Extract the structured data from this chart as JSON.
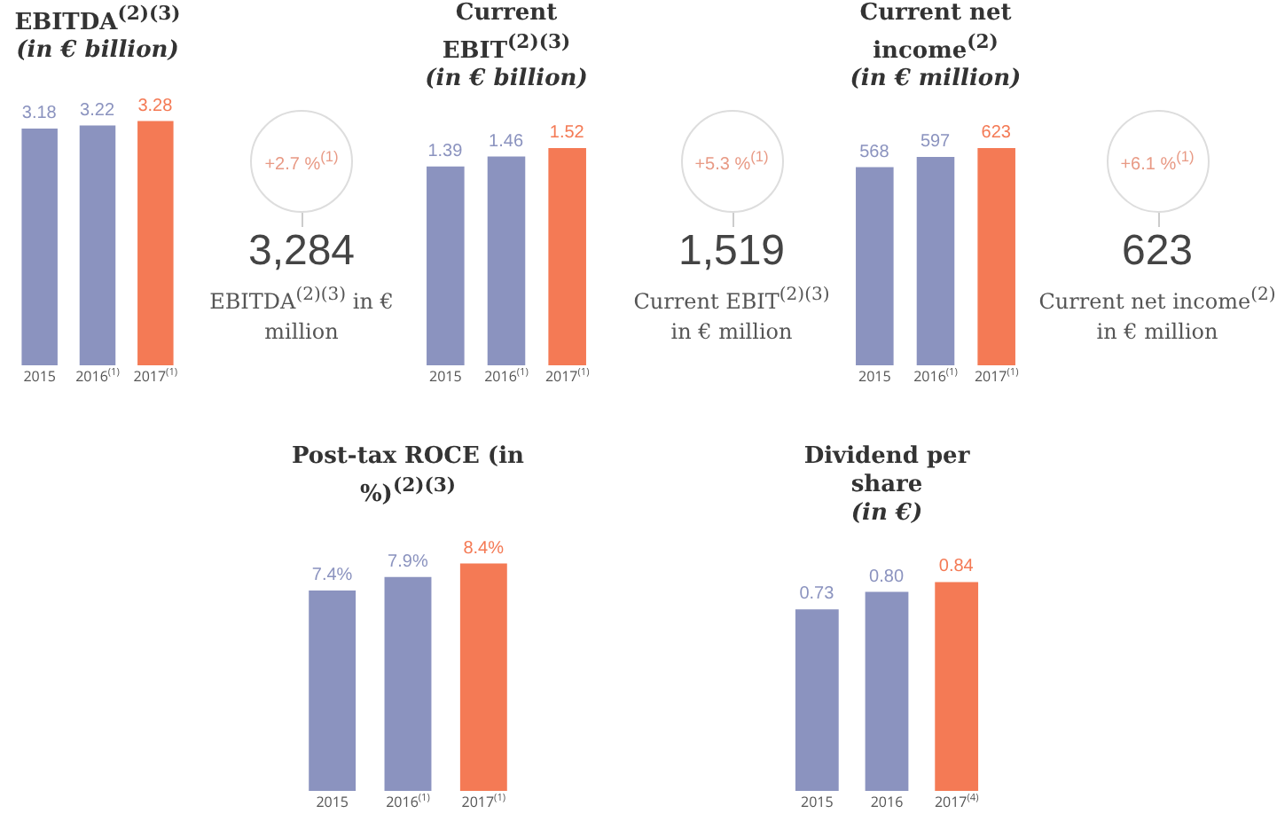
{
  "chart_data": [
    {
      "type": "bar",
      "title": "EBITDA$^{(2)(3)}$",
      "subtitle": "(in € billion)",
      "categories": [
        "2015",
        "2016$^{(1)}$",
        "2017$^{(1)}$"
      ],
      "values": [
        3.18,
        3.22,
        3.28
      ],
      "colors": [
        "#8b93bf",
        "#8b93bf",
        "#f47a55"
      ],
      "data_labels": true
    },
    {
      "type": "other",
      "annotations": [
        "+2.7 %$^{(1)}$",
        "3,284",
        "EBITDA$^{(2)(3)}$ in € million"
      ]
    },
    {
      "type": "bar",
      "title": "Current EBIT$^{(2)(3)}$",
      "subtitle": "(in € billion)",
      "categories": [
        "2015",
        "2016$^{(1)}$",
        "2017$^{(1)}$"
      ],
      "values": [
        1.39,
        1.46,
        1.52
      ],
      "colors": [
        "#8b93bf",
        "#8b93bf",
        "#f47a55"
      ],
      "data_labels": true
    },
    {
      "type": "other",
      "annotations": [
        "+5.3 %$^{(1)}$",
        "1,519",
        "Current EBIT$^{(2)(3)}$ in € million"
      ]
    },
    {
      "type": "bar",
      "title": "Current net income$^{(2)}$",
      "subtitle": "(in € million)",
      "categories": [
        "2015",
        "2016$^{(1)}$",
        "2017$^{(1)}$"
      ],
      "values": [
        568,
        597,
        623
      ],
      "colors": [
        "#8b93bf",
        "#8b93bf",
        "#f47a55"
      ],
      "data_labels": true
    },
    {
      "type": "other",
      "annotations": [
        "+6.1 %$^{(1)}$",
        "623",
        "Current net income$^{(2)}$ in € million"
      ]
    },
    {
      "type": "bar",
      "title": "Post-tax ROCE (in %)$^{(2)(3)}$",
      "categories": [
        "2015",
        "2016$^{(1)}$",
        "2017$^{(1)}$"
      ],
      "values": [
        7.4,
        7.9,
        8.4
      ],
      "value_labels": [
        "7.4%",
        "7.9%",
        "8.4%"
      ],
      "colors": [
        "#8b93bf",
        "#8b93bf",
        "#f47a55"
      ]
    },
    {
      "type": "bar",
      "title": "Dividend per share",
      "subtitle": "(in €)",
      "categories": [
        "2015",
        "2016",
        "2017$^{(4)}$"
      ],
      "values": [
        0.73,
        0.8,
        0.84
      ],
      "value_labels": [
        "0.73",
        "0.80",
        "0.84"
      ],
      "colors": [
        "#8b93bf",
        "#8b93bf",
        "#f47a55"
      ]
    }
  ]
}
